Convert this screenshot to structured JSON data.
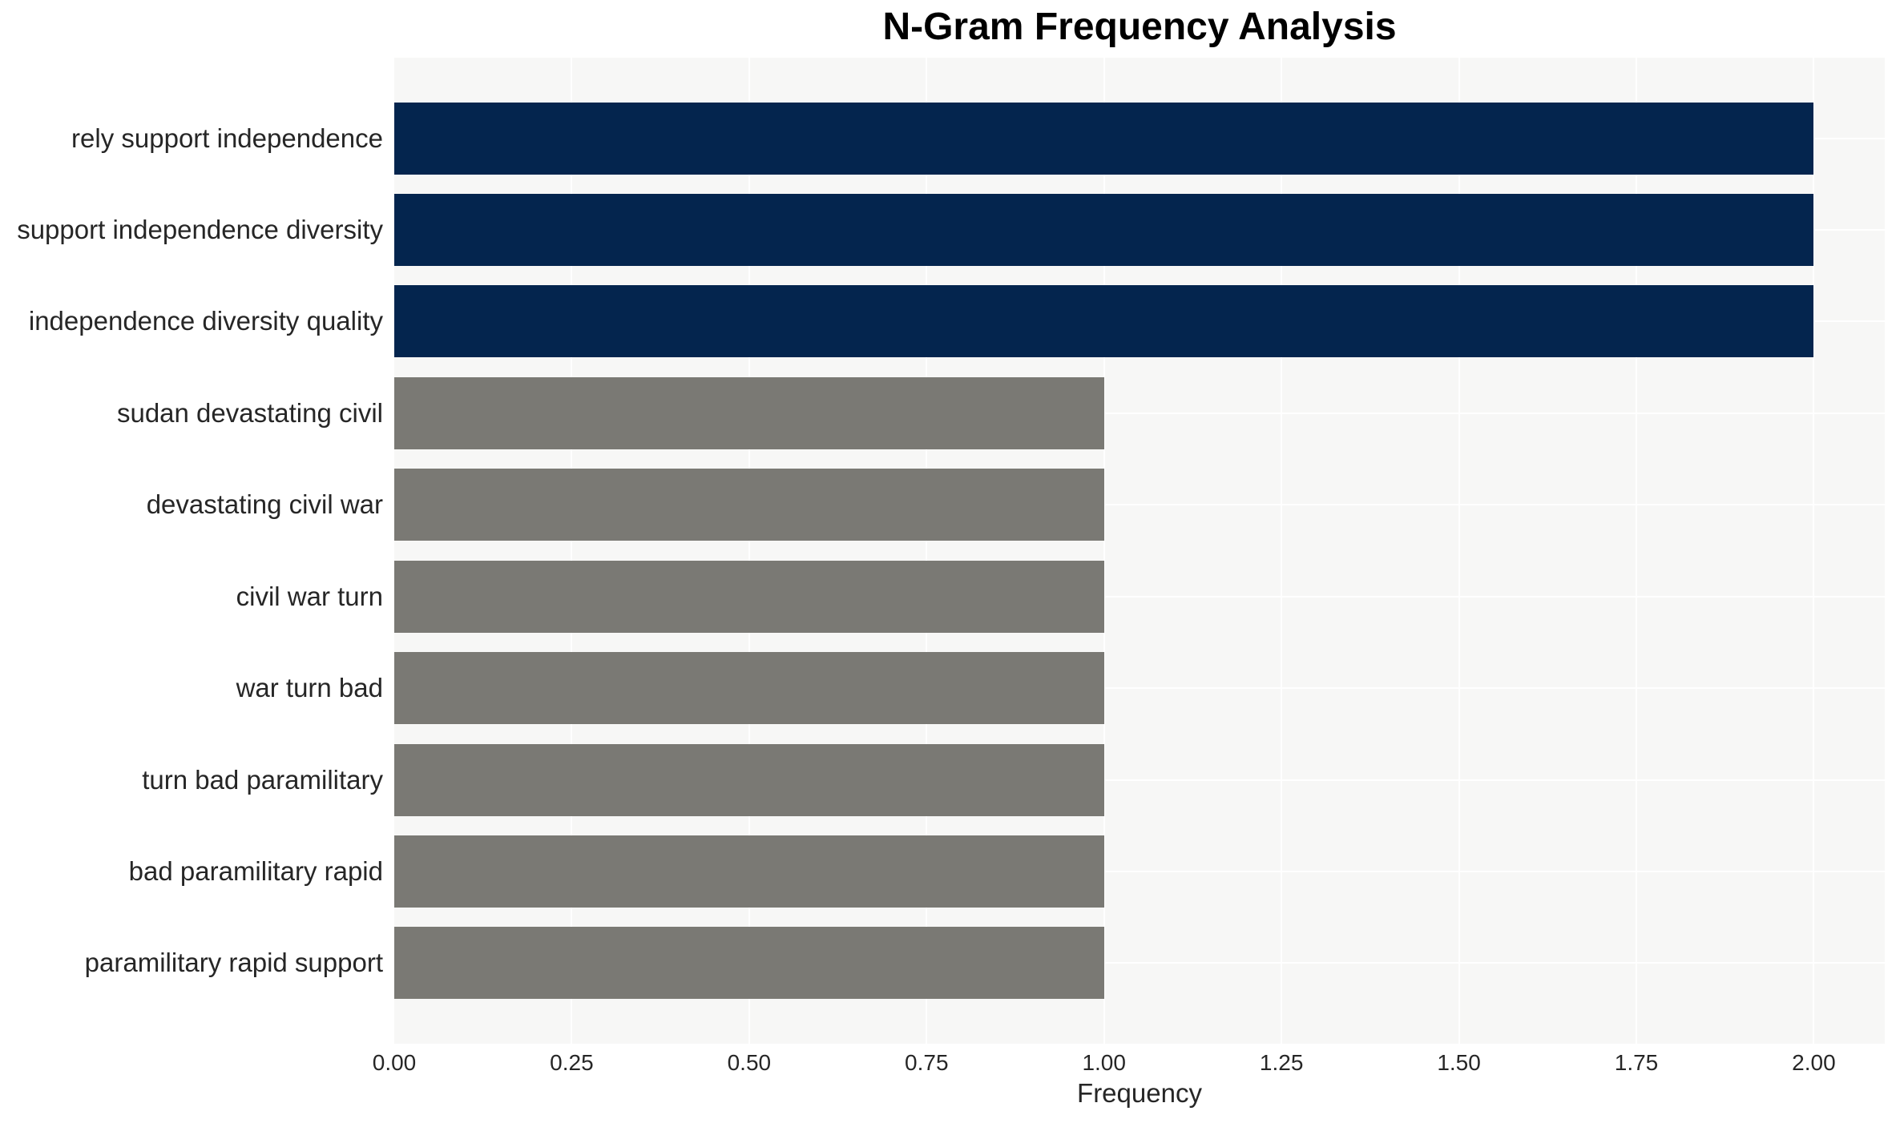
{
  "chart_data": {
    "type": "bar",
    "orientation": "horizontal",
    "title": "N-Gram Frequency Analysis",
    "xlabel": "Frequency",
    "ylabel": "",
    "categories": [
      "rely support independence",
      "support independence diversity",
      "independence diversity quality",
      "sudan devastating civil",
      "devastating civil war",
      "civil war turn",
      "war turn bad",
      "turn bad paramilitary",
      "bad paramilitary rapid",
      "paramilitary rapid support"
    ],
    "values": [
      2,
      2,
      2,
      1,
      1,
      1,
      1,
      1,
      1,
      1
    ],
    "bar_colors": [
      "#04254e",
      "#04254e",
      "#04254e",
      "#7a7974",
      "#7a7974",
      "#7a7974",
      "#7a7974",
      "#7a7974",
      "#7a7974",
      "#7a7974"
    ],
    "x_tick_labels": [
      "0.00",
      "0.25",
      "0.50",
      "0.75",
      "1.00",
      "1.25",
      "1.50",
      "1.75",
      "2.00"
    ],
    "x_tick_values": [
      0,
      0.25,
      0.5,
      0.75,
      1.0,
      1.25,
      1.5,
      1.75,
      2.0
    ],
    "xlim": [
      0,
      2.1
    ],
    "grid": "on",
    "grid_color": "#ffffff",
    "plot_background": "#f7f7f6",
    "figure_background": "#ffffff",
    "legend": "none",
    "colors": {
      "high_frequency_bar": "#04254e",
      "low_frequency_bar": "#7a7974",
      "title_text": "#000000",
      "axis_text": "#262626"
    }
  }
}
